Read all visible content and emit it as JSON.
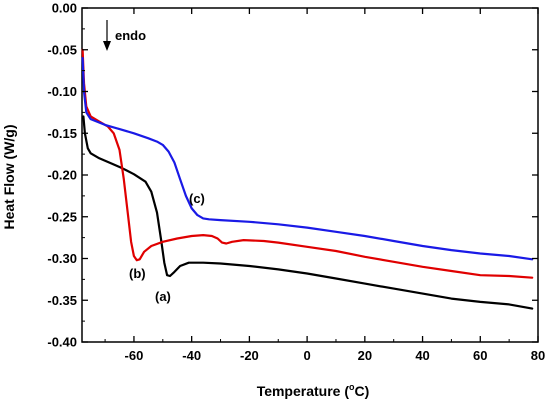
{
  "chart_data": {
    "type": "line",
    "xlabel": "Temperature (°C)",
    "xlabel_main": "Temperature (",
    "xlabel_sup": "o",
    "xlabel_tail": "C)",
    "ylabel": "Heat Flow (W/g)",
    "xlim": [
      -78,
      80
    ],
    "ylim": [
      -0.4,
      0.0
    ],
    "xticks": [
      -60,
      -40,
      -20,
      0,
      20,
      40,
      60,
      80
    ],
    "xtick_labels": [
      "-60",
      "-40",
      "-20",
      "0",
      "20",
      "40",
      "60",
      "80"
    ],
    "yticks": [
      0.0,
      -0.05,
      -0.1,
      -0.15,
      -0.2,
      -0.25,
      -0.3,
      -0.35,
      -0.4
    ],
    "ytick_labels": [
      "0.00",
      "-0.05",
      "-0.10",
      "-0.15",
      "-0.20",
      "-0.25",
      "-0.30",
      "-0.35",
      "-0.40"
    ],
    "grid": false,
    "annotations": {
      "endo": "endo",
      "label_a": "(a)",
      "label_b": "(b)",
      "label_c": "(c)"
    },
    "series": [
      {
        "label": "(a)",
        "color": "#000000",
        "points": [
          [
            -77.5,
            -0.13
          ],
          [
            -77,
            -0.15
          ],
          [
            -76,
            -0.168
          ],
          [
            -75,
            -0.174
          ],
          [
            -72,
            -0.18
          ],
          [
            -68,
            -0.186
          ],
          [
            -64,
            -0.192
          ],
          [
            -60,
            -0.199
          ],
          [
            -56,
            -0.208
          ],
          [
            -54,
            -0.22
          ],
          [
            -52,
            -0.245
          ],
          [
            -50.5,
            -0.28
          ],
          [
            -49.5,
            -0.305
          ],
          [
            -48.5,
            -0.32
          ],
          [
            -47.5,
            -0.321
          ],
          [
            -46,
            -0.316
          ],
          [
            -44,
            -0.309
          ],
          [
            -41,
            -0.305
          ],
          [
            -36,
            -0.305
          ],
          [
            -30,
            -0.306
          ],
          [
            -20,
            -0.309
          ],
          [
            -10,
            -0.313
          ],
          [
            0,
            -0.318
          ],
          [
            10,
            -0.324
          ],
          [
            20,
            -0.33
          ],
          [
            30,
            -0.336
          ],
          [
            40,
            -0.342
          ],
          [
            50,
            -0.348
          ],
          [
            60,
            -0.352
          ],
          [
            70,
            -0.355
          ],
          [
            78,
            -0.36
          ]
        ]
      },
      {
        "label": "(b)",
        "color": "#e00000",
        "points": [
          [
            -77.8,
            -0.05
          ],
          [
            -77.3,
            -0.09
          ],
          [
            -76.5,
            -0.118
          ],
          [
            -75,
            -0.13
          ],
          [
            -72,
            -0.136
          ],
          [
            -69,
            -0.142
          ],
          [
            -67,
            -0.15
          ],
          [
            -65,
            -0.17
          ],
          [
            -63.5,
            -0.205
          ],
          [
            -62,
            -0.25
          ],
          [
            -61,
            -0.28
          ],
          [
            -60,
            -0.297
          ],
          [
            -59,
            -0.302
          ],
          [
            -58,
            -0.301
          ],
          [
            -56.5,
            -0.292
          ],
          [
            -54,
            -0.285
          ],
          [
            -50,
            -0.28
          ],
          [
            -45,
            -0.276
          ],
          [
            -40,
            -0.273
          ],
          [
            -36,
            -0.272
          ],
          [
            -33,
            -0.273
          ],
          [
            -31,
            -0.276
          ],
          [
            -29.5,
            -0.281
          ],
          [
            -28,
            -0.282
          ],
          [
            -26,
            -0.28
          ],
          [
            -22,
            -0.278
          ],
          [
            -15,
            -0.279
          ],
          [
            -10,
            -0.281
          ],
          [
            0,
            -0.286
          ],
          [
            10,
            -0.291
          ],
          [
            20,
            -0.298
          ],
          [
            30,
            -0.304
          ],
          [
            40,
            -0.31
          ],
          [
            50,
            -0.315
          ],
          [
            60,
            -0.32
          ],
          [
            70,
            -0.321
          ],
          [
            78,
            -0.323
          ]
        ]
      },
      {
        "label": "(c)",
        "color": "#1a1ae6",
        "points": [
          [
            -77.8,
            -0.06
          ],
          [
            -77.3,
            -0.1
          ],
          [
            -76.5,
            -0.125
          ],
          [
            -75,
            -0.133
          ],
          [
            -70,
            -0.14
          ],
          [
            -65,
            -0.145
          ],
          [
            -60,
            -0.15
          ],
          [
            -55,
            -0.156
          ],
          [
            -52,
            -0.16
          ],
          [
            -50,
            -0.164
          ],
          [
            -48,
            -0.172
          ],
          [
            -46,
            -0.185
          ],
          [
            -44,
            -0.205
          ],
          [
            -42,
            -0.225
          ],
          [
            -40,
            -0.24
          ],
          [
            -38,
            -0.248
          ],
          [
            -36,
            -0.252
          ],
          [
            -34,
            -0.253
          ],
          [
            -30,
            -0.254
          ],
          [
            -20,
            -0.256
          ],
          [
            -10,
            -0.259
          ],
          [
            0,
            -0.263
          ],
          [
            10,
            -0.268
          ],
          [
            20,
            -0.273
          ],
          [
            30,
            -0.279
          ],
          [
            40,
            -0.285
          ],
          [
            50,
            -0.29
          ],
          [
            60,
            -0.294
          ],
          [
            70,
            -0.297
          ],
          [
            78,
            -0.301
          ]
        ]
      }
    ]
  }
}
